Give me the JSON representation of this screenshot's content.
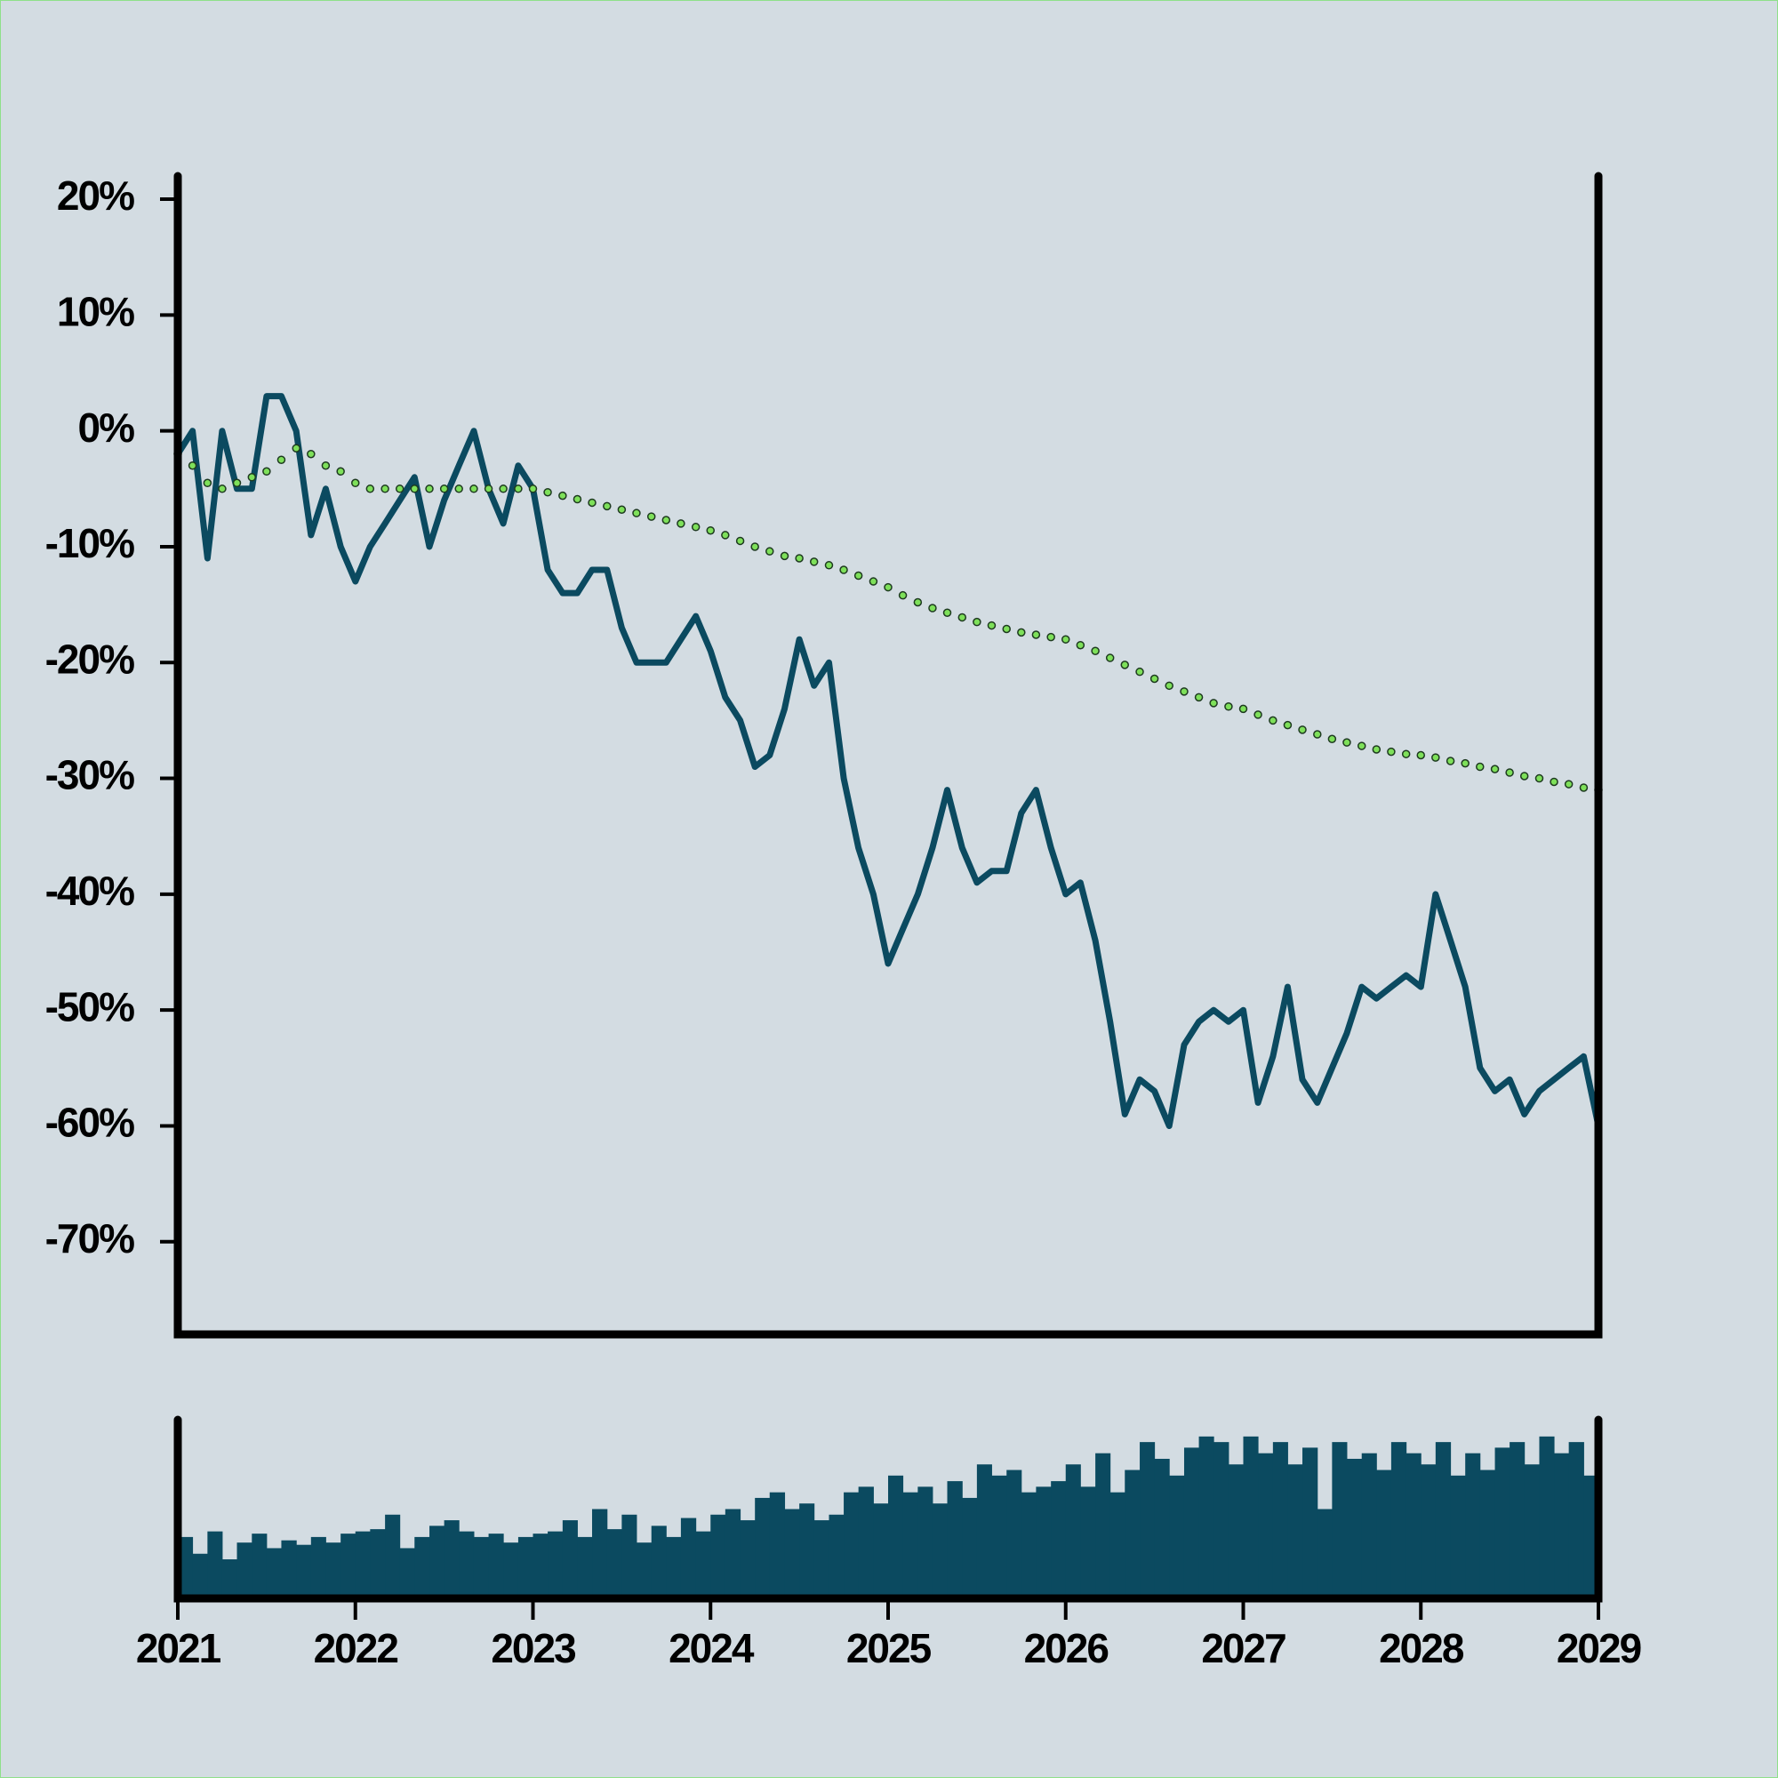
{
  "chart_data": [
    {
      "type": "line",
      "x": [
        2021,
        2021.083,
        2021.167,
        2021.25,
        2021.333,
        2021.417,
        2021.5,
        2021.583,
        2021.667,
        2021.75,
        2021.833,
        2021.917,
        2022,
        2022.083,
        2022.167,
        2022.25,
        2022.333,
        2022.417,
        2022.5,
        2022.583,
        2022.667,
        2022.75,
        2022.833,
        2022.917,
        2023,
        2023.083,
        2023.167,
        2023.25,
        2023.333,
        2023.417,
        2023.5,
        2023.583,
        2023.667,
        2023.75,
        2023.833,
        2023.917,
        2024,
        2024.083,
        2024.167,
        2024.25,
        2024.333,
        2024.417,
        2024.5,
        2024.583,
        2024.667,
        2024.75,
        2024.833,
        2024.917,
        2025,
        2025.083,
        2025.167,
        2025.25,
        2025.333,
        2025.417,
        2025.5,
        2025.583,
        2025.667,
        2025.75,
        2025.833,
        2025.917,
        2026,
        2026.083,
        2026.167,
        2026.25,
        2026.333,
        2026.417,
        2026.5,
        2026.583,
        2026.667,
        2026.75,
        2026.833,
        2026.917,
        2027,
        2027.083,
        2027.167,
        2027.25,
        2027.333,
        2027.417,
        2027.5,
        2027.583,
        2027.667,
        2027.75,
        2027.833,
        2027.917,
        2028,
        2028.083,
        2028.167,
        2028.25,
        2028.333,
        2028.417,
        2028.5,
        2028.583,
        2028.667,
        2028.75,
        2028.833,
        2028.917,
        2029
      ],
      "series": [
        {
          "color": "#0b4a60",
          "style": "line",
          "values": [
            -2,
            0,
            -11,
            0,
            -5,
            -5,
            3,
            3,
            0,
            -9,
            -5,
            -10,
            -13,
            -10,
            -8,
            -6,
            -4,
            -10,
            -6,
            -3,
            0,
            -5,
            -8,
            -3,
            -5,
            -12,
            -14,
            -14,
            -12,
            -12,
            -17,
            -20,
            -20,
            -20,
            -18,
            -16,
            -19,
            -23,
            -25,
            -29,
            -28,
            -24,
            -18,
            -22,
            -20,
            -30,
            -36,
            -40,
            -46,
            -43,
            -40,
            -36,
            -31,
            -36,
            -39,
            -38,
            -38,
            -33,
            -31,
            -36,
            -40,
            -39,
            -44,
            -51,
            -59,
            -56,
            -57,
            -60,
            -53,
            -51,
            -50,
            -51,
            -50,
            -58,
            -54,
            -48,
            -56,
            -58,
            -55,
            -52,
            -48,
            -49,
            -48,
            -47,
            -48,
            -40,
            -44,
            -48,
            -55,
            -57,
            -56,
            -59,
            -57,
            -56,
            -55,
            -54,
            -60
          ]
        },
        {
          "color": "#7ee05a",
          "edgecolor": "#1e3a20",
          "style": "dots",
          "values": [
            -2,
            -3,
            -4.5,
            -5,
            -4.5,
            -4,
            -3.5,
            -2.5,
            -1.5,
            -2,
            -3,
            -3.5,
            -4.5,
            -5,
            -5,
            -5,
            -5,
            -5,
            -5,
            -5,
            -5,
            -5,
            -5,
            -5,
            -5,
            -5.3,
            -5.6,
            -5.9,
            -6.2,
            -6.5,
            -6.8,
            -7.1,
            -7.4,
            -7.7,
            -8,
            -8.3,
            -8.6,
            -9,
            -9.5,
            -10,
            -10.4,
            -10.8,
            -11,
            -11.3,
            -11.6,
            -12,
            -12.5,
            -13,
            -13.5,
            -14.2,
            -14.8,
            -15.3,
            -15.7,
            -16.1,
            -16.5,
            -16.8,
            -17.1,
            -17.4,
            -17.6,
            -17.8,
            -18,
            -18.5,
            -19,
            -19.6,
            -20.2,
            -20.8,
            -21.4,
            -22,
            -22.5,
            -23,
            -23.5,
            -23.8,
            -24,
            -24.5,
            -25,
            -25.4,
            -25.8,
            -26.2,
            -26.6,
            -26.9,
            -27.2,
            -27.5,
            -27.7,
            -27.9,
            -28,
            -28.2,
            -28.5,
            -28.7,
            -29,
            -29.2,
            -29.5,
            -29.8,
            -30,
            -30.3,
            -30.5,
            -30.8,
            -31
          ]
        }
      ],
      "xlim": [
        2021,
        2029
      ],
      "ylim": [
        -78,
        22
      ],
      "yticks": [
        {
          "value": 20,
          "label": "20%"
        },
        {
          "value": 10,
          "label": "10%"
        },
        {
          "value": 0,
          "label": "0%"
        },
        {
          "value": -10,
          "label": "-10%"
        },
        {
          "value": -20,
          "label": "-20%"
        },
        {
          "value": -30,
          "label": "-30%"
        },
        {
          "value": -40,
          "label": "-40%"
        },
        {
          "value": -50,
          "label": "-50%"
        },
        {
          "value": -60,
          "label": "-60%"
        },
        {
          "value": -70,
          "label": "-70%"
        }
      ]
    },
    {
      "type": "bar",
      "x": [
        2021,
        2021.083,
        2021.167,
        2021.25,
        2021.333,
        2021.417,
        2021.5,
        2021.583,
        2021.667,
        2021.75,
        2021.833,
        2021.917,
        2022,
        2022.083,
        2022.167,
        2022.25,
        2022.333,
        2022.417,
        2022.5,
        2022.583,
        2022.667,
        2022.75,
        2022.833,
        2022.917,
        2023,
        2023.083,
        2023.167,
        2023.25,
        2023.333,
        2023.417,
        2023.5,
        2023.583,
        2023.667,
        2023.75,
        2023.833,
        2023.917,
        2024,
        2024.083,
        2024.167,
        2024.25,
        2024.333,
        2024.417,
        2024.5,
        2024.583,
        2024.667,
        2024.75,
        2024.833,
        2024.917,
        2025,
        2025.083,
        2025.167,
        2025.25,
        2025.333,
        2025.417,
        2025.5,
        2025.583,
        2025.667,
        2025.75,
        2025.833,
        2025.917,
        2026,
        2026.083,
        2026.167,
        2026.25,
        2026.333,
        2026.417,
        2026.5,
        2026.583,
        2026.667,
        2026.75,
        2026.833,
        2026.917,
        2027,
        2027.083,
        2027.167,
        2027.25,
        2027.333,
        2027.417,
        2027.5,
        2027.583,
        2027.667,
        2027.75,
        2027.833,
        2027.917,
        2028,
        2028.083,
        2028.167,
        2028.25,
        2028.333,
        2028.417,
        2028.5,
        2028.583,
        2028.667,
        2028.75,
        2028.833,
        2028.917
      ],
      "values": [
        55,
        40,
        60,
        35,
        50,
        58,
        45,
        52,
        48,
        55,
        50,
        58,
        60,
        62,
        75,
        45,
        55,
        65,
        70,
        60,
        55,
        58,
        50,
        55,
        58,
        60,
        70,
        55,
        80,
        62,
        75,
        50,
        65,
        55,
        72,
        60,
        75,
        80,
        70,
        90,
        95,
        80,
        85,
        70,
        75,
        95,
        100,
        85,
        110,
        95,
        100,
        85,
        105,
        90,
        120,
        110,
        115,
        95,
        100,
        105,
        120,
        100,
        130,
        95,
        115,
        140,
        125,
        110,
        135,
        145,
        140,
        120,
        145,
        130,
        140,
        120,
        135,
        80,
        140,
        125,
        130,
        115,
        140,
        130,
        120,
        140,
        110,
        130,
        115,
        135,
        140,
        120,
        145,
        130,
        140,
        110
      ],
      "color": "#0b4a60",
      "xlim": [
        2021,
        2029
      ],
      "ylim": [
        0,
        160
      ],
      "xticks": [
        2021,
        2022,
        2023,
        2024,
        2025,
        2026,
        2027,
        2028,
        2029
      ]
    }
  ]
}
